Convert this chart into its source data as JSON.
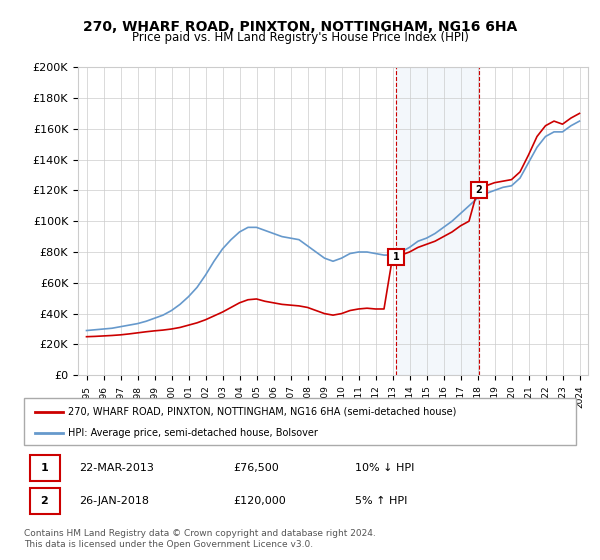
{
  "title": "270, WHARF ROAD, PINXTON, NOTTINGHAM, NG16 6HA",
  "subtitle": "Price paid vs. HM Land Registry's House Price Index (HPI)",
  "legend_line1": "270, WHARF ROAD, PINXTON, NOTTINGHAM, NG16 6HA (semi-detached house)",
  "legend_line2": "HPI: Average price, semi-detached house, Bolsover",
  "footer": "Contains HM Land Registry data © Crown copyright and database right 2024.\nThis data is licensed under the Open Government Licence v3.0.",
  "transactions": [
    {
      "label": "1",
      "date": "22-MAR-2013",
      "price": "£76,500",
      "hpi": "10% ↓ HPI"
    },
    {
      "label": "2",
      "date": "26-JAN-2018",
      "price": "£120,000",
      "hpi": "5% ↑ HPI"
    }
  ],
  "transaction_years": [
    2013.22,
    2018.07
  ],
  "transaction_prices": [
    76500,
    120000
  ],
  "ylim": [
    0,
    200000
  ],
  "yticks": [
    0,
    20000,
    40000,
    60000,
    80000,
    100000,
    120000,
    140000,
    160000,
    180000,
    200000
  ],
  "ytick_labels": [
    "£0",
    "£20K",
    "£40K",
    "£60K",
    "£80K",
    "£100K",
    "£120K",
    "£140K",
    "£160K",
    "£180K",
    "£200K"
  ],
  "xlim": [
    1994.5,
    2024.5
  ],
  "red_line_color": "#cc0000",
  "blue_line_color": "#6699cc",
  "marker_bg": "#cc0000",
  "vline_color": "#cc0000",
  "hpi_x": [
    1995,
    1995.5,
    1996,
    1996.5,
    1997,
    1997.5,
    1998,
    1998.5,
    1999,
    1999.5,
    2000,
    2000.5,
    2001,
    2001.5,
    2002,
    2002.5,
    2003,
    2003.5,
    2004,
    2004.5,
    2005,
    2005.5,
    2006,
    2006.5,
    2007,
    2007.5,
    2008,
    2008.5,
    2009,
    2009.5,
    2010,
    2010.5,
    2011,
    2011.5,
    2012,
    2012.5,
    2013,
    2013.5,
    2014,
    2014.5,
    2015,
    2015.5,
    2016,
    2016.5,
    2017,
    2017.5,
    2018,
    2018.5,
    2019,
    2019.5,
    2020,
    2020.5,
    2021,
    2021.5,
    2022,
    2022.5,
    2023,
    2023.5,
    2024
  ],
  "hpi_y": [
    29000,
    29500,
    30000,
    30500,
    31500,
    32500,
    33500,
    35000,
    37000,
    39000,
    42000,
    46000,
    51000,
    57000,
    65000,
    74000,
    82000,
    88000,
    93000,
    96000,
    96000,
    94000,
    92000,
    90000,
    89000,
    88000,
    84000,
    80000,
    76000,
    74000,
    76000,
    79000,
    80000,
    80000,
    79000,
    78000,
    78000,
    80000,
    83000,
    87000,
    89000,
    92000,
    96000,
    100000,
    105000,
    110000,
    115000,
    118000,
    120000,
    122000,
    123000,
    128000,
    138000,
    148000,
    155000,
    158000,
    158000,
    162000,
    165000
  ],
  "price_x": [
    1995,
    1995.5,
    1996,
    1996.5,
    1997,
    1997.5,
    1998,
    1998.5,
    1999,
    1999.5,
    2000,
    2000.5,
    2001,
    2001.5,
    2002,
    2002.5,
    2003,
    2003.5,
    2004,
    2004.5,
    2005,
    2005.5,
    2006,
    2006.5,
    2007,
    2007.5,
    2008,
    2008.5,
    2009,
    2009.5,
    2010,
    2010.5,
    2011,
    2011.5,
    2012,
    2012.5,
    2013,
    2013.5,
    2014,
    2014.5,
    2015,
    2015.5,
    2016,
    2016.5,
    2017,
    2017.5,
    2018,
    2018.5,
    2019,
    2019.5,
    2020,
    2020.5,
    2021,
    2021.5,
    2022,
    2022.5,
    2023,
    2023.5,
    2024
  ],
  "price_y": [
    25000,
    25200,
    25500,
    25800,
    26200,
    26800,
    27500,
    28200,
    28800,
    29300,
    30000,
    31000,
    32500,
    34000,
    36000,
    38500,
    41000,
    44000,
    47000,
    49000,
    49500,
    48000,
    47000,
    46000,
    45500,
    45000,
    44000,
    42000,
    40000,
    39000,
    40000,
    42000,
    43000,
    43500,
    43000,
    43000,
    76500,
    78000,
    80000,
    83000,
    85000,
    87000,
    90000,
    93000,
    97000,
    100000,
    120000,
    123000,
    125000,
    126000,
    127000,
    132000,
    143000,
    155000,
    162000,
    165000,
    163000,
    167000,
    170000
  ]
}
